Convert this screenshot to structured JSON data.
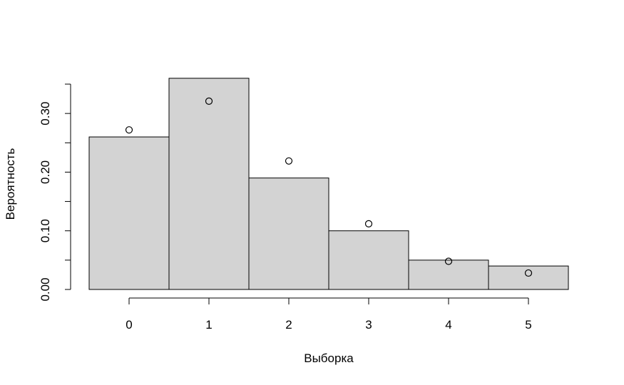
{
  "chart_data": {
    "type": "bar",
    "title": "",
    "xlabel": "Выборка",
    "ylabel": "Вероятность",
    "x": [
      0,
      1,
      2,
      3,
      4,
      5
    ],
    "x_tick_labels": [
      "0",
      "1",
      "2",
      "3",
      "4",
      "5"
    ],
    "y_ticks": [
      0.0,
      0.05,
      0.1,
      0.15,
      0.2,
      0.25,
      0.3,
      0.35
    ],
    "y_tick_labels": [
      "0.00",
      "",
      "0.10",
      "",
      "0.20",
      "",
      "0.30",
      ""
    ],
    "ylim": [
      0,
      0.35
    ],
    "xlim": [
      -0.5,
      5.5
    ],
    "grid": false,
    "series": [
      {
        "kind": "bars",
        "values": [
          0.26,
          0.36,
          0.19,
          0.1,
          0.05,
          0.04
        ],
        "color": "#d3d3d3"
      },
      {
        "kind": "points",
        "values": [
          0.272,
          0.321,
          0.219,
          0.112,
          0.048,
          0.028
        ]
      }
    ]
  }
}
